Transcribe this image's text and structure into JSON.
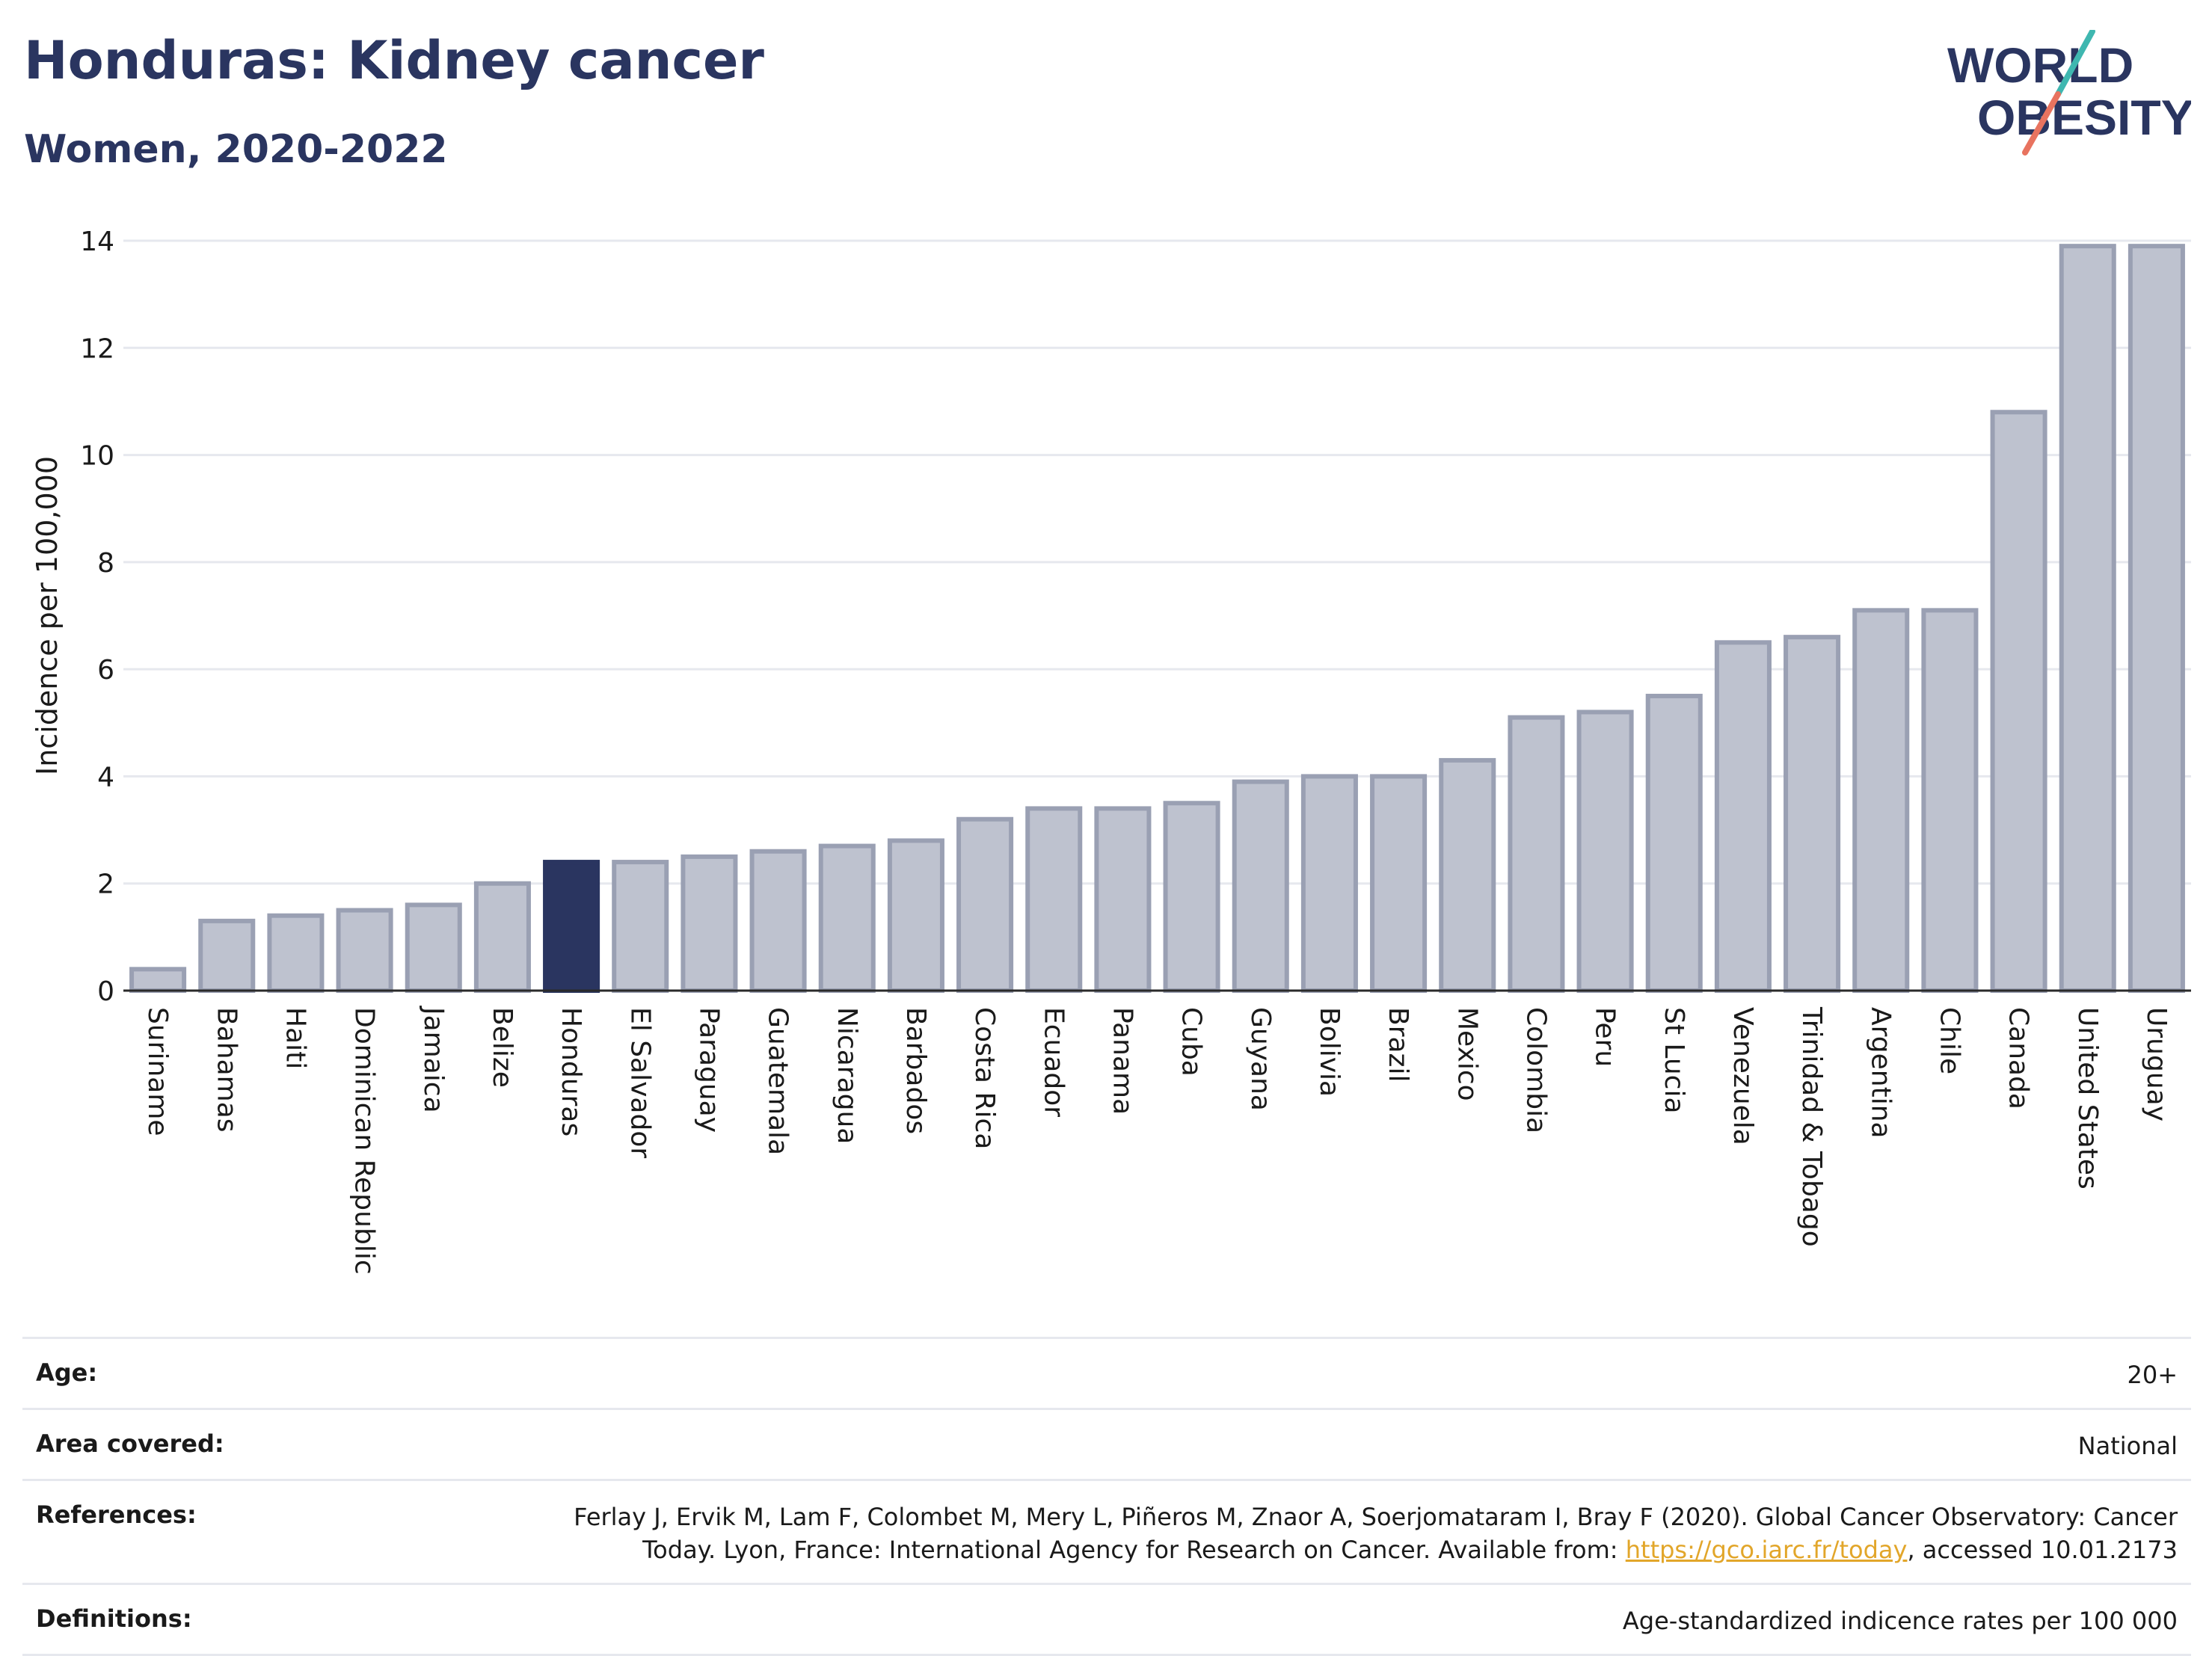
{
  "header": {
    "title": "Honduras: Kidney cancer",
    "subtitle": "Women, 2020-2022"
  },
  "logo": {
    "line1": "WORLD",
    "line2": "OBESITY",
    "accent_teal": "#3fb7b0",
    "accent_coral": "#e8735f"
  },
  "chart_data": {
    "type": "bar",
    "title": "Honduras: Kidney cancer",
    "subtitle": "Women, 2020-2022",
    "ylabel": "Incidence per 100,000",
    "xlabel": "",
    "ylim": [
      0,
      14
    ],
    "yticks": [
      0,
      2,
      4,
      6,
      8,
      10,
      12,
      14
    ],
    "grid": true,
    "highlight": "Honduras",
    "colors": {
      "bar": "#bec2cf",
      "bar_border": "#9aa0b3",
      "highlight": "#2a3560"
    },
    "categories": [
      "Suriname",
      "Bahamas",
      "Haiti",
      "Dominican Republic",
      "Jamaica",
      "Belize",
      "Honduras",
      "El Salvador",
      "Paraguay",
      "Guatemala",
      "Nicaragua",
      "Barbados",
      "Costa Rica",
      "Ecuador",
      "Panama",
      "Cuba",
      "Guyana",
      "Bolivia",
      "Brazil",
      "Mexico",
      "Colombia",
      "Peru",
      "St Lucia",
      "Venezuela",
      "Trinidad & Tobago",
      "Argentina",
      "Chile",
      "Canada",
      "United States",
      "Uruguay"
    ],
    "values": [
      0.4,
      1.3,
      1.4,
      1.5,
      1.6,
      2.0,
      2.4,
      2.4,
      2.5,
      2.6,
      2.7,
      2.8,
      3.2,
      3.4,
      3.4,
      3.5,
      3.9,
      4.0,
      4.0,
      4.3,
      5.1,
      5.2,
      5.5,
      6.5,
      6.6,
      7.1,
      7.1,
      10.8,
      13.9,
      13.9
    ]
  },
  "meta": {
    "age_label": "Age:",
    "age_value": "20+",
    "area_label": "Area covered:",
    "area_value": "National",
    "references_label": "References:",
    "references_text_1": "Ferlay J, Ervik M, Lam F, Colombet M, Mery L, Piñeros M, Znaor A, Soerjomataram I, Bray F (2020). Global Cancer Observatory: Cancer Today. Lyon, France: International Agency for Research on Cancer. Available from: ",
    "references_link": "https://gco.iarc.fr/today",
    "references_text_2": ", accessed 10.01.2173",
    "definitions_label": "Definitions:",
    "definitions_value": "Age-standardized indicence rates per 100 000"
  }
}
